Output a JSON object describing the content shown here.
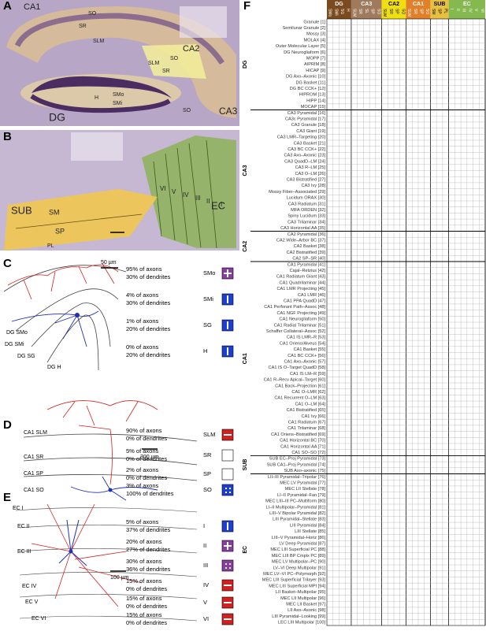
{
  "panels": {
    "A": {
      "letter": "A",
      "labels": [
        "CA1",
        "SO",
        "SR",
        "SLM",
        "CA2",
        "SO",
        "SLM",
        "SR",
        "SMo",
        "SMi",
        "H",
        "SO",
        "CA3",
        "DG"
      ]
    },
    "B": {
      "letter": "B",
      "labels": [
        "SUB",
        "SM",
        "SP",
        "PL",
        "EC",
        "VI",
        "V",
        "IV",
        "III",
        "II",
        "I"
      ]
    },
    "C": {
      "letter": "C",
      "scale": "50 µm",
      "labels": [
        "DG SMo",
        "DG SMi",
        "DG SG",
        "DG H"
      ],
      "legend": [
        {
          "axons": "95% of axons",
          "dendrites": "30% of dendrites",
          "layer": "SMo"
        },
        {
          "axons": "4% of axons",
          "dendrites": "30% of dendrites",
          "layer": "SMi"
        },
        {
          "axons": "1% of axons",
          "dendrites": "20% of dendrites",
          "layer": "SG"
        },
        {
          "axons": "0% of axons",
          "dendrites": "20% of dendrites",
          "layer": "H"
        }
      ]
    },
    "D": {
      "letter": "D",
      "scale": "300 µm",
      "labels": [
        "CA1 SLM",
        "CA1 SR",
        "CA1 SP",
        "CA1 SO"
      ],
      "legend": [
        {
          "axons": "90% of axons",
          "dendrites": "0% of dendrites",
          "layer": "SLM"
        },
        {
          "axons": "5% of axons",
          "dendrites": "0% of dendrites",
          "layer": "SR"
        },
        {
          "axons": "2% of axons",
          "dendrites": "0% of dendrites",
          "layer": "SP"
        },
        {
          "axons": "3% of axons",
          "dendrites": "100% of dendrites",
          "layer": "SO"
        }
      ]
    },
    "E": {
      "letter": "E",
      "scale": "100 µm",
      "labels": [
        "EC I",
        "EC II",
        "EC III",
        "EC IV",
        "EC V",
        "EC VI"
      ],
      "legend": [
        {
          "axons": "5% of axons",
          "dendrites": "37% of dendrites",
          "layer": "I"
        },
        {
          "axons": "20% of axons",
          "dendrites": "27% of dendrites",
          "layer": "II"
        },
        {
          "axons": "30% of axons",
          "dendrites": "36% of dendrites",
          "layer": "III"
        },
        {
          "axons": "15% of axons",
          "dendrites": "0% of dendrites",
          "layer": "IV"
        },
        {
          "axons": "15% of axons",
          "dendrites": "0% of dendrites",
          "layer": "V"
        },
        {
          "axons": "15% of axons",
          "dendrites": "0% of dendrites",
          "layer": "VI"
        }
      ]
    }
  },
  "matrix": {
    "letter": "F",
    "groups": [
      {
        "name": "DG",
        "layers": [
          "SMo",
          "SMi",
          "SG",
          "H"
        ]
      },
      {
        "name": "CA3",
        "layers": [
          "SLM",
          "SR",
          "SL",
          "SP",
          "SO"
        ]
      },
      {
        "name": "CA2",
        "layers": [
          "SLM",
          "SR",
          "SP",
          "SO"
        ]
      },
      {
        "name": "CA1",
        "layers": [
          "SLM",
          "SR",
          "SP",
          "SO"
        ]
      },
      {
        "name": "SUB",
        "layers": [
          "SM",
          "SP",
          "PL"
        ]
      },
      {
        "name": "EC",
        "layers": [
          "I",
          "II",
          "III",
          "IV",
          "V",
          "VI"
        ]
      }
    ],
    "sections": [
      {
        "name": "DG",
        "rows": [
          "Granule [1]",
          "Semilunar Granule [2]",
          "Mossy [3]",
          "MOLAX [4]",
          "Outer Molecular Layer [5]",
          "DG Neurogliaform [6]",
          "MOPP [7]",
          "AIPRIM [8]",
          "HICAP [9]",
          "DG Axo–Axonic [10]",
          "DG Basket [11]",
          "DG BC CCK+ [12]",
          "HIPROM [13]",
          "HIPP [14]",
          "MOCAP [15]"
        ]
      },
      {
        "name": "CA3",
        "rows": [
          "CA3 Pyramidal [16]",
          "CA3c Pyramidal [17]",
          "CA3 Granule [18]",
          "CA3 Giant [19]",
          "CA3 LMR–Targeting [20]",
          "CA3 Basket [21]",
          "CA3 BC CCK+ [22]",
          "CA3 Axo–Axonic [23]",
          "CA3 QuadD–LM [24]",
          "CA3 R–LM [25]",
          "CA3 O–LM [26]",
          "CA3 Bistratified [27]",
          "CA3 Ivy [28]",
          "Mossy Fiber–Associated [29]",
          "Lucidum ORAX [30]",
          "CA3 Radiatum [31]",
          "MFA ORDEN [32]",
          "Spiny Lucidum [33]",
          "CA3 Trilaminar [34]",
          "CA3 Horizontal AA [35]"
        ]
      },
      {
        "name": "CA2",
        "rows": [
          "CA2 Pyramidal [36]",
          "CA2 Wide–Arbor BC [37]",
          "CA2 Basket [38]",
          "CA2 Bistratified [39]",
          "CA2 SP–SR [40]"
        ]
      },
      {
        "name": "CA1",
        "rows": [
          "CA1 Pyramidal [41]",
          "Cajal–Retzius [42]",
          "CA1 Radiatum Giant [43]",
          "CA1 Quadrilaminar [44]",
          "CA1 LMR Projecting [45]",
          "CA1 LMR [46]",
          "CA1 PPA QuadD [47]",
          "CA1 Perforant Path–Assoc [48]",
          "CA1 NGF Projecting [49]",
          "CA1 Neurogliaform [50]",
          "CA1 Radial Trilaminar [51]",
          "Schaffer Collateral–Assoc [52]",
          "CA1 IS LMR–R [53]",
          "CA1 Oriens/Alveus [54]",
          "CA1 Basket [55]",
          "CA1 BC CCK+ [56]",
          "CA1 Axo–Axonic [57]",
          "CA1 IS O–Target QuadD [58]",
          "CA1 IS LM–R [59]",
          "CA1 R–Recv Apical–Target [60]",
          "CA1 Back–Projection [61]",
          "CA1 O–LMR [62]",
          "CA1 Recurrent O–LM [63]",
          "CA1 O–LM [64]",
          "CA1 Bistratified [65]",
          "CA1 Ivy [66]",
          "CA1 Radiatum [67]",
          "CA1 Trilaminar [68]",
          "CA1 Oriens–Bistratified [69]",
          "CA1 Horizontal BC [70]",
          "CA1 Horizontal AA [71]",
          "CA1 SO–SO [72]"
        ]
      },
      {
        "name": "SUB",
        "rows": [
          "SUB EC–Proj Pyramidal [73]",
          "SUB CA1–Proj Pyramidal [74]",
          "SUB Axo–axonic [75]"
        ]
      },
      {
        "name": "EC",
        "rows": [
          "LII–III Pyramidal–Tripolar [76]",
          "MEC LV Pyramidal [77]",
          "MEC LII Stellate [78]",
          "LI–II Pyramidal–Fan [79]",
          "MEC LIII–III PC–Multiform [80]",
          "LI–II Multipolar–Pyramidal [81]",
          "LIII–V Bipolar Pyramidal [82]",
          "LIII Pyramidal–Stellate [83]",
          "LIII Pyramidal [84]",
          "LIII Stellate [85]",
          "LIII–V Pyramidal–Horiz [86]",
          "LV Deep Pyramidal [87]",
          "MEC LIII Superficial PC [88]",
          "MEC LIII BP Cmplx PC [89]",
          "MEC LV Multipolar–PC [90]",
          "LV–VI Deep Multipolar [91]",
          "MEC LV–VI PC–Polymorph [92]",
          "MEC LIII Superficial Trilayer [93]",
          "MEC LIII Superficial MPI [94]",
          "LII Basket–Multipolar [95]",
          "MEC LII Multipolar [96]",
          "MEC LII Basket [97]",
          "LII Axo–Axonic [98]",
          "LIII Pyramidal–Looking [99]",
          "LEC LIII Multipolar [100]"
        ]
      }
    ]
  }
}
